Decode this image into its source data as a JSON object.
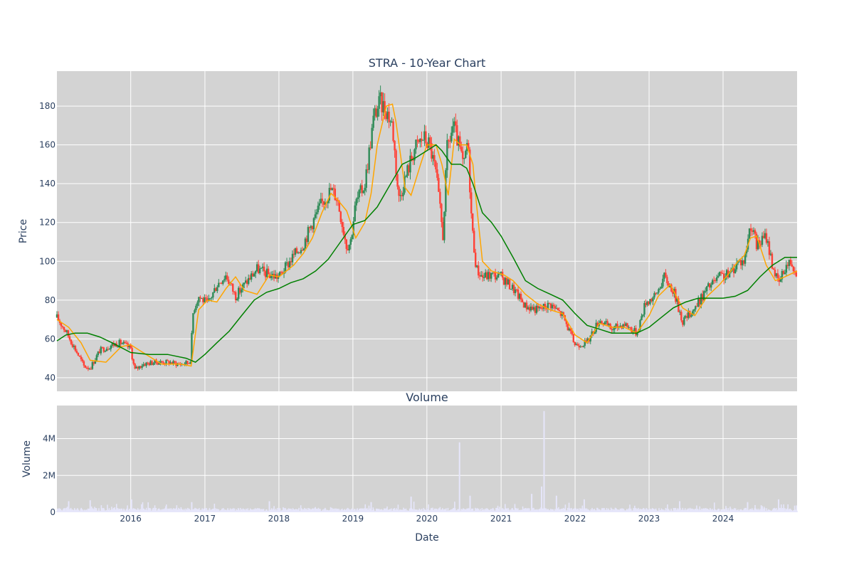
{
  "title": "STRA - 10-Year Chart",
  "colors": {
    "plot_bg": "#d3d3d3",
    "grid": "#ffffff",
    "candle_up": "#2e8b57",
    "candle_down": "#ff4136",
    "ma_short": "#ffa500",
    "ma_long": "#008000",
    "volume_bar": "#e6e6fa",
    "text": "#2a3f5f"
  },
  "chart_data": [
    {
      "type": "candlestick",
      "title": "STRA - 10-Year Chart",
      "xlabel": "",
      "ylabel": "Price",
      "x_range": [
        "2015-01-02",
        "2024-12-31"
      ],
      "ylim": [
        33,
        198
      ],
      "yticks": [
        40,
        60,
        80,
        100,
        120,
        140,
        160,
        180
      ],
      "xticks": [
        "2016",
        "2017",
        "2018",
        "2019",
        "2020",
        "2021",
        "2022",
        "2023",
        "2024"
      ],
      "grid": true,
      "price_close": {
        "dates": [
          "2015-01-02",
          "2015-02-15",
          "2015-04-01",
          "2015-05-15",
          "2015-06-15",
          "2015-08-01",
          "2015-10-01",
          "2015-11-15",
          "2016-01-01",
          "2016-01-20",
          "2016-03-01",
          "2016-05-01",
          "2016-07-01",
          "2016-09-01",
          "2016-10-20",
          "2016-11-05",
          "2016-12-01",
          "2017-01-15",
          "2017-03-01",
          "2017-04-15",
          "2017-06-01",
          "2017-07-15",
          "2017-09-15",
          "2017-11-15",
          "2018-01-01",
          "2018-03-15",
          "2018-05-01",
          "2018-06-15",
          "2018-08-01",
          "2018-09-15",
          "2018-10-15",
          "2018-12-01",
          "2018-12-20",
          "2019-01-15",
          "2019-03-01",
          "2019-04-15",
          "2019-05-15",
          "2019-06-15",
          "2019-07-15",
          "2019-08-15",
          "2019-10-01",
          "2019-11-01",
          "2019-12-15",
          "2020-01-15",
          "2020-02-15",
          "2020-03-20",
          "2020-04-10",
          "2020-05-10",
          "2020-06-10",
          "2020-07-01",
          "2020-07-20",
          "2020-08-10",
          "2020-09-01",
          "2020-10-01",
          "2020-11-15",
          "2021-01-01",
          "2021-03-01",
          "2021-05-01",
          "2021-07-01",
          "2021-09-01",
          "2021-11-01",
          "2022-01-01",
          "2022-03-01",
          "2022-05-01",
          "2022-07-01",
          "2022-09-01",
          "2022-11-01",
          "2022-12-15",
          "2023-02-01",
          "2023-03-15",
          "2023-05-01",
          "2023-06-15",
          "2023-08-15",
          "2023-10-15",
          "2023-12-15",
          "2024-02-01",
          "2024-03-15",
          "2024-04-15",
          "2024-05-15",
          "2024-06-15",
          "2024-08-01",
          "2024-09-01",
          "2024-10-01",
          "2024-11-01",
          "2024-12-01",
          "2024-12-31"
        ],
        "values": [
          71,
          64,
          55,
          46,
          45,
          54,
          57,
          58,
          55,
          44,
          47,
          48,
          48,
          47,
          48,
          75,
          82,
          78,
          88,
          93,
          82,
          88,
          96,
          93,
          92,
          103,
          109,
          120,
          130,
          137,
          133,
          108,
          110,
          130,
          140,
          175,
          182,
          178,
          170,
          132,
          148,
          158,
          164,
          160,
          145,
          113,
          158,
          170,
          158,
          148,
          163,
          118,
          96,
          92,
          93,
          92,
          86,
          77,
          75,
          78,
          72,
          57,
          58,
          70,
          65,
          68,
          63,
          79,
          82,
          92,
          85,
          69,
          76,
          86,
          92,
          93,
          100,
          100,
          120,
          108,
          113,
          98,
          88,
          97,
          100,
          94
        ]
      },
      "series": [
        {
          "name": "",
          "kind": "short moving average",
          "dates": [
            "2015-01-02",
            "2015-03-01",
            "2015-05-01",
            "2015-06-15",
            "2015-09-01",
            "2015-11-15",
            "2016-01-01",
            "2016-02-15",
            "2016-06-01",
            "2016-09-01",
            "2016-10-25",
            "2016-12-01",
            "2017-01-15",
            "2017-03-01",
            "2017-04-15",
            "2017-06-01",
            "2017-07-15",
            "2017-09-15",
            "2017-11-15",
            "2018-01-01",
            "2018-03-15",
            "2018-05-01",
            "2018-06-15",
            "2018-08-01",
            "2018-09-15",
            "2018-10-15",
            "2018-12-01",
            "2019-01-15",
            "2019-03-01",
            "2019-04-01",
            "2019-05-01",
            "2019-06-15",
            "2019-07-15",
            "2019-08-01",
            "2019-09-15",
            "2019-10-15",
            "2019-12-01",
            "2020-01-01",
            "2020-02-15",
            "2020-03-15",
            "2020-04-15",
            "2020-05-15",
            "2020-06-15",
            "2020-07-15",
            "2020-08-15",
            "2020-09-01",
            "2020-10-01",
            "2020-11-15",
            "2021-01-15",
            "2021-03-01",
            "2021-05-01",
            "2021-07-01",
            "2021-09-01",
            "2021-11-01",
            "2022-01-01",
            "2022-03-01",
            "2022-05-01",
            "2022-07-01",
            "2022-09-01",
            "2022-11-01",
            "2023-01-01",
            "2023-02-15",
            "2023-04-15",
            "2023-06-15",
            "2023-08-15",
            "2023-10-15",
            "2023-12-15",
            "2024-02-01",
            "2024-03-15",
            "2024-04-15",
            "2024-05-15",
            "2024-06-15",
            "2024-08-01",
            "2024-09-15",
            "2024-11-01",
            "2024-12-31"
          ],
          "values": [
            70,
            66,
            58,
            49,
            48,
            56,
            57,
            54,
            47,
            47,
            46,
            75,
            80,
            79,
            86,
            92,
            85,
            83,
            93,
            92,
            98,
            104,
            112,
            125,
            135,
            132,
            126,
            112,
            120,
            135,
            160,
            180,
            181,
            172,
            138,
            134,
            150,
            160,
            160,
            150,
            134,
            163,
            160,
            160,
            150,
            130,
            100,
            95,
            93,
            90,
            83,
            78,
            75,
            73,
            62,
            58,
            68,
            66,
            66,
            63,
            72,
            82,
            88,
            76,
            72,
            82,
            88,
            94,
            100,
            103,
            112,
            113,
            98,
            90,
            92,
            95
          ]
        },
        {
          "name": "",
          "kind": "long moving average",
          "dates": [
            "2015-01-02",
            "2015-02-15",
            "2015-04-01",
            "2015-06-01",
            "2015-08-01",
            "2015-10-01",
            "2016-01-01",
            "2016-04-01",
            "2016-07-01",
            "2016-10-01",
            "2016-11-15",
            "2017-01-01",
            "2017-03-01",
            "2017-05-01",
            "2017-07-01",
            "2017-09-01",
            "2017-11-01",
            "2018-01-01",
            "2018-03-01",
            "2018-05-01",
            "2018-07-01",
            "2018-09-01",
            "2018-11-01",
            "2019-01-01",
            "2019-03-01",
            "2019-05-01",
            "2019-07-01",
            "2019-09-01",
            "2019-11-01",
            "2020-01-01",
            "2020-02-15",
            "2020-03-15",
            "2020-05-01",
            "2020-06-15",
            "2020-07-15",
            "2020-08-15",
            "2020-10-01",
            "2020-11-15",
            "2021-01-01",
            "2021-03-01",
            "2021-05-01",
            "2021-07-01",
            "2021-09-01",
            "2021-11-01",
            "2022-01-01",
            "2022-03-01",
            "2022-05-01",
            "2022-07-01",
            "2022-09-01",
            "2022-11-01",
            "2023-01-01",
            "2023-03-01",
            "2023-05-01",
            "2023-07-01",
            "2023-09-01",
            "2023-11-01",
            "2024-01-01",
            "2024-03-01",
            "2024-05-01",
            "2024-07-01",
            "2024-09-01",
            "2024-11-01",
            "2024-12-31"
          ],
          "values": [
            59,
            62,
            63,
            63,
            61,
            58,
            53,
            52,
            52,
            50,
            48,
            52,
            58,
            64,
            72,
            80,
            84,
            86,
            89,
            91,
            95,
            101,
            110,
            119,
            121,
            128,
            139,
            150,
            153,
            157,
            160,
            157,
            150,
            150,
            148,
            140,
            125,
            120,
            113,
            102,
            90,
            86,
            83,
            80,
            73,
            67,
            65,
            63,
            63,
            63,
            66,
            71,
            76,
            79,
            81,
            81,
            81,
            82,
            85,
            92,
            98,
            102,
            102
          ]
        }
      ]
    },
    {
      "type": "bar",
      "title": "Volume",
      "xlabel": "Date",
      "ylabel": "Volume",
      "ylim": [
        0,
        5800000
      ],
      "yticks": [
        0,
        2000000,
        4000000
      ],
      "ytick_labels": [
        "0",
        "2M",
        "4M"
      ],
      "xticks": [
        "2016",
        "2017",
        "2018",
        "2019",
        "2020",
        "2021",
        "2022",
        "2023",
        "2024"
      ],
      "grid": true,
      "volume_spikes": {
        "dates": [
          "2015-03-01",
          "2015-06-15",
          "2016-01-05",
          "2016-10-28",
          "2017-11-15",
          "2019-04-01",
          "2019-10-15",
          "2020-06-10",
          "2020-08-01",
          "2021-06-01",
          "2021-07-20",
          "2021-08-01",
          "2021-10-01",
          "2022-02-15",
          "2023-06-01",
          "2024-05-01",
          "2024-10-01"
        ],
        "values": [
          600000,
          650000,
          700000,
          550000,
          600000,
          550000,
          850000,
          3800000,
          900000,
          1000000,
          1400000,
          5500000,
          900000,
          700000,
          600000,
          550000,
          700000
        ]
      }
    }
  ]
}
